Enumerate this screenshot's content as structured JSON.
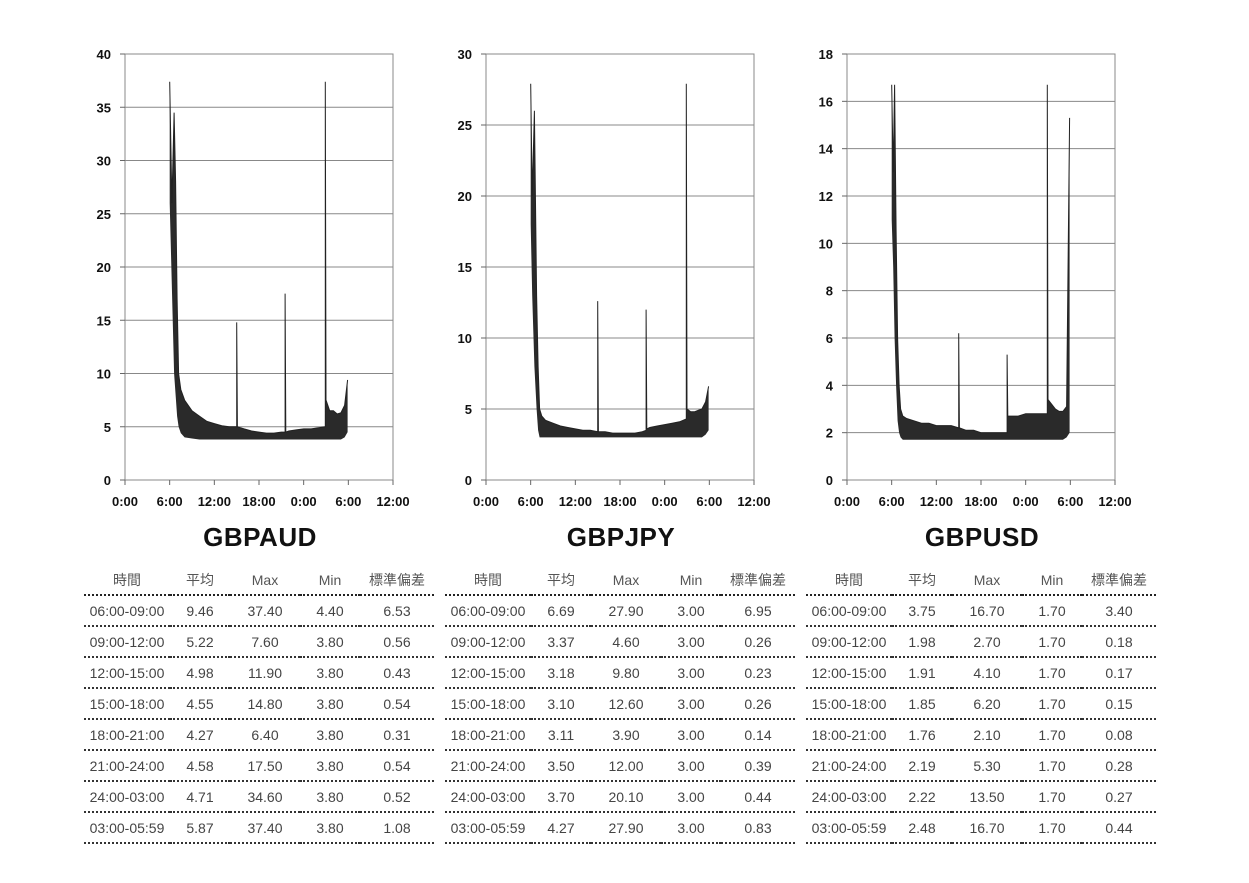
{
  "table_header": [
    "時間",
    "平均",
    "Max",
    "Min",
    "標準偏差"
  ],
  "chart_data": [
    {
      "type": "line",
      "title": "GBPAUD",
      "xlabel": "",
      "ylabel": "",
      "x_ticks": [
        "0:00",
        "6:00",
        "12:00",
        "18:00",
        "0:00",
        "6:00",
        "12:00"
      ],
      "ylim": [
        0,
        40
      ],
      "y_ticks": [
        0,
        5,
        10,
        15,
        20,
        25,
        30,
        35,
        40
      ],
      "grid": true,
      "series": [
        {
          "x": [
            6,
            6.3,
            6.6,
            6.8,
            7,
            7.2,
            7.5,
            8,
            9,
            10,
            11,
            12,
            13,
            14,
            15,
            15.01,
            15.1,
            16,
            17,
            18,
            19,
            20,
            21,
            21.5,
            21.51,
            21.6,
            22,
            23,
            24,
            25,
            26,
            26.9,
            26.91,
            27,
            27.5,
            28,
            28.5,
            29,
            29.5,
            29.9
          ],
          "y": [
            37.4,
            26,
            34.5,
            28,
            17,
            10,
            8.5,
            7.5,
            6.5,
            6,
            5.5,
            5.3,
            5.1,
            5,
            5,
            14.8,
            5,
            4.8,
            4.6,
            4.5,
            4.4,
            4.4,
            4.5,
            4.5,
            17.5,
            4.5,
            4.6,
            4.7,
            4.8,
            4.8,
            4.9,
            5,
            37.4,
            7.5,
            6.5,
            6.5,
            6.2,
            6.3,
            7,
            9.4
          ],
          "min": [
            26,
            18,
            10,
            8,
            6,
            5,
            4.4,
            4,
            3.9,
            3.8,
            3.8,
            3.8,
            3.8,
            3.8,
            3.8,
            3.8,
            3.8,
            3.8,
            3.8,
            3.8,
            3.8,
            3.8,
            3.8,
            3.8,
            3.8,
            3.8,
            3.8,
            3.8,
            3.8,
            3.8,
            3.8,
            3.8,
            3.8,
            3.8,
            3.8,
            3.8,
            3.8,
            3.8,
            4,
            4.5
          ]
        }
      ],
      "table": [
        [
          "06:00-09:00",
          "9.46",
          "37.40",
          "4.40",
          "6.53"
        ],
        [
          "09:00-12:00",
          "5.22",
          "7.60",
          "3.80",
          "0.56"
        ],
        [
          "12:00-15:00",
          "4.98",
          "11.90",
          "3.80",
          "0.43"
        ],
        [
          "15:00-18:00",
          "4.55",
          "14.80",
          "3.80",
          "0.54"
        ],
        [
          "18:00-21:00",
          "4.27",
          "6.40",
          "3.80",
          "0.31"
        ],
        [
          "21:00-24:00",
          "4.58",
          "17.50",
          "3.80",
          "0.54"
        ],
        [
          "24:00-03:00",
          "4.71",
          "34.60",
          "3.80",
          "0.52"
        ],
        [
          "03:00-05:59",
          "5.87",
          "37.40",
          "3.80",
          "1.08"
        ]
      ]
    },
    {
      "type": "line",
      "title": "GBPJPY",
      "xlabel": "",
      "ylabel": "",
      "x_ticks": [
        "0:00",
        "6:00",
        "12:00",
        "18:00",
        "0:00",
        "6:00",
        "12:00"
      ],
      "ylim": [
        0,
        30
      ],
      "y_ticks": [
        0,
        5,
        10,
        15,
        20,
        25,
        30
      ],
      "grid": true,
      "series": [
        {
          "x": [
            6,
            6.2,
            6.5,
            6.8,
            7,
            7.2,
            7.5,
            8,
            9,
            10,
            11,
            12,
            13,
            14,
            15,
            15.01,
            15.1,
            16,
            17,
            18,
            19,
            20,
            21,
            21.5,
            21.51,
            21.6,
            22,
            23,
            24,
            25,
            26,
            26.9,
            26.91,
            27,
            27.5,
            28,
            28.5,
            29,
            29.5,
            29.9
          ],
          "y": [
            27.9,
            20,
            26,
            13,
            8,
            5,
            4.5,
            4.2,
            4,
            3.8,
            3.7,
            3.6,
            3.5,
            3.5,
            3.4,
            12.6,
            3.4,
            3.4,
            3.3,
            3.3,
            3.3,
            3.3,
            3.4,
            3.5,
            12,
            3.6,
            3.7,
            3.8,
            3.9,
            4,
            4.1,
            4.3,
            27.9,
            5,
            4.8,
            4.8,
            4.9,
            5,
            5.5,
            6.6
          ],
          "min": [
            18,
            13,
            8,
            5,
            3.5,
            3,
            3,
            3,
            3,
            3,
            3,
            3,
            3,
            3,
            3,
            3,
            3,
            3,
            3,
            3,
            3,
            3,
            3,
            3,
            3,
            3,
            3,
            3,
            3,
            3,
            3,
            3,
            3,
            3,
            3,
            3,
            3,
            3,
            3.2,
            3.5
          ]
        }
      ],
      "table": [
        [
          "06:00-09:00",
          "6.69",
          "27.90",
          "3.00",
          "6.95"
        ],
        [
          "09:00-12:00",
          "3.37",
          "4.60",
          "3.00",
          "0.26"
        ],
        [
          "12:00-15:00",
          "3.18",
          "9.80",
          "3.00",
          "0.23"
        ],
        [
          "15:00-18:00",
          "3.10",
          "12.60",
          "3.00",
          "0.26"
        ],
        [
          "18:00-21:00",
          "3.11",
          "3.90",
          "3.00",
          "0.14"
        ],
        [
          "21:00-24:00",
          "3.50",
          "12.00",
          "3.00",
          "0.39"
        ],
        [
          "24:00-03:00",
          "3.70",
          "20.10",
          "3.00",
          "0.44"
        ],
        [
          "03:00-05:59",
          "4.27",
          "27.90",
          "3.00",
          "0.83"
        ]
      ]
    },
    {
      "type": "line",
      "title": "GBPUSD",
      "xlabel": "",
      "ylabel": "",
      "x_ticks": [
        "0:00",
        "6:00",
        "12:00",
        "18:00",
        "0:00",
        "6:00",
        "12:00"
      ],
      "ylim": [
        0,
        18
      ],
      "y_ticks": [
        0,
        2,
        4,
        6,
        8,
        10,
        12,
        14,
        16,
        18
      ],
      "grid": true,
      "series": [
        {
          "x": [
            6,
            6.2,
            6.4,
            6.6,
            6.8,
            7,
            7.2,
            7.5,
            8,
            9,
            10,
            11,
            12,
            13,
            14,
            15,
            15.01,
            15.1,
            16,
            17,
            18,
            19,
            20,
            21,
            21.5,
            21.51,
            21.6,
            22,
            23,
            24,
            25,
            26,
            26.9,
            26.91,
            27,
            27.5,
            28,
            28.5,
            29,
            29.5,
            29.9
          ],
          "y": [
            16.7,
            13,
            16.7,
            10.5,
            6,
            4,
            3,
            2.7,
            2.6,
            2.5,
            2.4,
            2.4,
            2.3,
            2.3,
            2.3,
            2.2,
            6.2,
            2.2,
            2.1,
            2.1,
            2.0,
            2.0,
            2.0,
            2.0,
            2.0,
            5.3,
            2.7,
            2.7,
            2.7,
            2.8,
            2.8,
            2.8,
            2.8,
            16.7,
            3.4,
            3.2,
            3.0,
            2.9,
            2.9,
            3.1,
            15.3
          ],
          "min": [
            11,
            9,
            6,
            4,
            2.5,
            2,
            1.8,
            1.7,
            1.7,
            1.7,
            1.7,
            1.7,
            1.7,
            1.7,
            1.7,
            1.7,
            1.7,
            1.7,
            1.7,
            1.7,
            1.7,
            1.7,
            1.7,
            1.7,
            1.7,
            1.7,
            1.7,
            1.7,
            1.7,
            1.7,
            1.7,
            1.7,
            1.7,
            1.7,
            1.7,
            1.7,
            1.7,
            1.7,
            1.7,
            1.8,
            2
          ]
        }
      ],
      "table": [
        [
          "06:00-09:00",
          "3.75",
          "16.70",
          "1.70",
          "3.40"
        ],
        [
          "09:00-12:00",
          "1.98",
          "2.70",
          "1.70",
          "0.18"
        ],
        [
          "12:00-15:00",
          "1.91",
          "4.10",
          "1.70",
          "0.17"
        ],
        [
          "15:00-18:00",
          "1.85",
          "6.20",
          "1.70",
          "0.15"
        ],
        [
          "18:00-21:00",
          "1.76",
          "2.10",
          "1.70",
          "0.08"
        ],
        [
          "21:00-24:00",
          "2.19",
          "5.30",
          "1.70",
          "0.28"
        ],
        [
          "24:00-03:00",
          "2.22",
          "13.50",
          "1.70",
          "0.27"
        ],
        [
          "03:00-05:59",
          "2.48",
          "16.70",
          "1.70",
          "0.44"
        ]
      ]
    }
  ]
}
